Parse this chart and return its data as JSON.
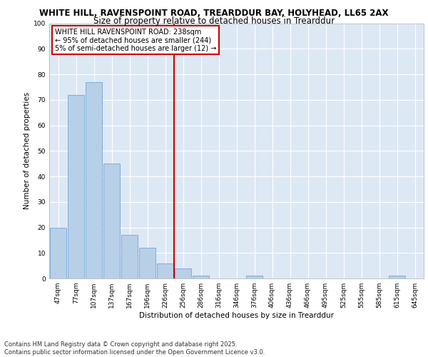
{
  "title1": "WHITE HILL, RAVENSPOINT ROAD, TREARDDUR BAY, HOLYHEAD, LL65 2AX",
  "title2": "Size of property relative to detached houses in Trearddur",
  "xlabel": "Distribution of detached houses by size in Trearddur",
  "ylabel": "Number of detached properties",
  "categories": [
    "47sqm",
    "77sqm",
    "107sqm",
    "137sqm",
    "167sqm",
    "196sqm",
    "226sqm",
    "256sqm",
    "286sqm",
    "316sqm",
    "346sqm",
    "376sqm",
    "406sqm",
    "436sqm",
    "466sqm",
    "495sqm",
    "525sqm",
    "555sqm",
    "585sqm",
    "615sqm",
    "645sqm"
  ],
  "values": [
    20,
    72,
    77,
    45,
    17,
    12,
    6,
    4,
    1,
    0,
    0,
    1,
    0,
    0,
    0,
    0,
    0,
    0,
    0,
    1,
    0
  ],
  "bar_color": "#b8cfe8",
  "bar_edge_color": "#6ea8d8",
  "vline_x": 6.5,
  "vline_color": "#cc0000",
  "annotation_box_text": "WHITE HILL RAVENSPOINT ROAD: 238sqm\n← 95% of detached houses are smaller (244)\n5% of semi-detached houses are larger (12) →",
  "annotation_box_color": "#ffffff",
  "annotation_box_edge_color": "#cc0000",
  "ylim": [
    0,
    100
  ],
  "yticks": [
    0,
    10,
    20,
    30,
    40,
    50,
    60,
    70,
    80,
    90,
    100
  ],
  "plot_bg_color": "#dde8f5",
  "footer_text": "Contains HM Land Registry data © Crown copyright and database right 2025.\nContains public sector information licensed under the Open Government Licence v3.0.",
  "title_fontsize": 8.5,
  "subtitle_fontsize": 8.5,
  "axis_label_fontsize": 7.5,
  "tick_fontsize": 6.5,
  "annotation_fontsize": 7,
  "footer_fontsize": 6
}
